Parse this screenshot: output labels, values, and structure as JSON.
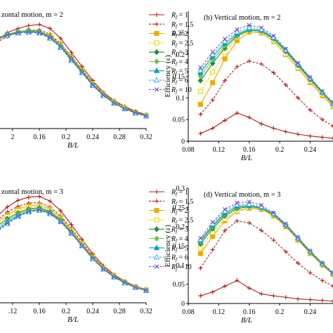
{
  "colors": {
    "1": "#b01c1c",
    "1.5": "#b01c1c",
    "2": "#f0a800",
    "2.5": "#e8d000",
    "3": "#1f8a3c",
    "4": "#7ac043",
    "5": "#00a0c0",
    "6": "#30b0e8",
    "10": "#7050c0"
  },
  "legend_entries": [
    {
      "key": "1",
      "label": "1"
    },
    {
      "key": "1.5",
      "label": "1.5"
    },
    {
      "key": "2",
      "label": "2"
    },
    {
      "key": "2.5",
      "label": "2.5"
    },
    {
      "key": "3",
      "label": "3"
    },
    {
      "key": "4",
      "label": "4"
    },
    {
      "key": "5",
      "label": "5"
    },
    {
      "key": "6",
      "label": "6"
    },
    {
      "key": "10",
      "label": "10"
    }
  ],
  "legend_prefix": "R",
  "legend_subscript": "f",
  "chart_data": [
    {
      "id": "a",
      "type": "line",
      "title": "zontal motion, m = 2",
      "xlabel": "B/L",
      "ylabel": "",
      "xlim": [
        0.08,
        0.32
      ],
      "ylim": [
        0,
        0.3
      ],
      "xticks": [
        "2",
        "0.16",
        "0.2",
        "0.24",
        "0.28",
        "0.32"
      ],
      "x": [
        0.096,
        0.112,
        0.128,
        0.144,
        0.16,
        0.176,
        0.192,
        0.208,
        0.224,
        0.24,
        0.256,
        0.272,
        0.288,
        0.304,
        0.32
      ],
      "series": [
        {
          "key": "1",
          "values": [
            0.22,
            0.24,
            0.25,
            0.257,
            0.26,
            0.25,
            0.225,
            0.19,
            0.155,
            0.12,
            0.09,
            0.07,
            0.055,
            0.043,
            0.035
          ]
        },
        {
          "key": "1.5",
          "values": [
            0.215,
            0.23,
            0.24,
            0.245,
            0.246,
            0.236,
            0.212,
            0.18,
            0.148,
            0.115,
            0.088,
            0.068,
            0.053,
            0.042,
            0.034
          ]
        },
        {
          "key": "2",
          "values": [
            0.22,
            0.232,
            0.24,
            0.244,
            0.243,
            0.232,
            0.21,
            0.178,
            0.146,
            0.113,
            0.087,
            0.067,
            0.052,
            0.041,
            0.033
          ]
        },
        {
          "key": "2.5",
          "values": [
            0.222,
            0.233,
            0.24,
            0.243,
            0.242,
            0.23,
            0.208,
            0.176,
            0.144,
            0.112,
            0.086,
            0.066,
            0.051,
            0.04,
            0.033
          ]
        },
        {
          "key": "3",
          "values": [
            0.225,
            0.235,
            0.242,
            0.245,
            0.243,
            0.23,
            0.207,
            0.175,
            0.143,
            0.11,
            0.085,
            0.065,
            0.05,
            0.04,
            0.032
          ]
        },
        {
          "key": "4",
          "values": [
            0.226,
            0.236,
            0.242,
            0.244,
            0.242,
            0.229,
            0.206,
            0.173,
            0.141,
            0.109,
            0.084,
            0.064,
            0.05,
            0.039,
            0.032
          ]
        },
        {
          "key": "5",
          "values": [
            0.224,
            0.234,
            0.24,
            0.242,
            0.24,
            0.227,
            0.204,
            0.172,
            0.14,
            0.108,
            0.083,
            0.064,
            0.049,
            0.039,
            0.031
          ]
        },
        {
          "key": "6",
          "values": [
            0.222,
            0.232,
            0.238,
            0.24,
            0.238,
            0.225,
            0.202,
            0.17,
            0.139,
            0.107,
            0.082,
            0.063,
            0.049,
            0.038,
            0.031
          ]
        },
        {
          "key": "10",
          "values": [
            0.223,
            0.233,
            0.239,
            0.241,
            0.239,
            0.226,
            0.203,
            0.171,
            0.14,
            0.108,
            0.083,
            0.063,
            0.049,
            0.039,
            0.031
          ]
        }
      ]
    },
    {
      "id": "b",
      "type": "line",
      "title": "(b) Vertical motion, m = 2",
      "xlabel": "B/L",
      "ylabel": "Efficiency (ε)",
      "xlim": [
        0.08,
        0.27
      ],
      "ylim": [
        0,
        0.3
      ],
      "xticks": [
        "0.08",
        "0.12",
        "0.16",
        "0.2",
        "0.24"
      ],
      "yticks": [
        "0",
        "0.05",
        "0.1",
        "0.15",
        "0.2",
        "0.25"
      ],
      "x": [
        0.096,
        0.112,
        0.128,
        0.144,
        0.16,
        0.176,
        0.192,
        0.208,
        0.224,
        0.24,
        0.256,
        0.27
      ],
      "series": [
        {
          "key": "1",
          "values": [
            0.018,
            0.03,
            0.048,
            0.065,
            0.055,
            0.04,
            0.03,
            0.022,
            0.016,
            0.012,
            0.009,
            0.007
          ]
        },
        {
          "key": "1.5",
          "values": [
            0.062,
            0.095,
            0.14,
            0.172,
            0.185,
            0.178,
            0.158,
            0.13,
            0.1,
            0.072,
            0.05,
            0.035
          ]
        },
        {
          "key": "2",
          "values": [
            0.085,
            0.135,
            0.19,
            0.232,
            0.252,
            0.25,
            0.23,
            0.2,
            0.168,
            0.135,
            0.105,
            0.08
          ]
        },
        {
          "key": "2.5",
          "values": [
            0.115,
            0.16,
            0.205,
            0.24,
            0.255,
            0.252,
            0.232,
            0.202,
            0.17,
            0.138,
            0.108,
            0.082
          ]
        },
        {
          "key": "3",
          "values": [
            0.14,
            0.18,
            0.215,
            0.243,
            0.256,
            0.254,
            0.236,
            0.207,
            0.175,
            0.142,
            0.111,
            0.085
          ]
        },
        {
          "key": "4",
          "values": [
            0.15,
            0.188,
            0.22,
            0.245,
            0.257,
            0.255,
            0.238,
            0.209,
            0.177,
            0.144,
            0.112,
            0.086
          ]
        },
        {
          "key": "5",
          "values": [
            0.158,
            0.195,
            0.225,
            0.248,
            0.258,
            0.256,
            0.239,
            0.21,
            0.178,
            0.145,
            0.113,
            0.087
          ]
        },
        {
          "key": "6",
          "values": [
            0.163,
            0.2,
            0.23,
            0.252,
            0.262,
            0.258,
            0.24,
            0.211,
            0.179,
            0.146,
            0.114,
            0.088
          ]
        },
        {
          "key": "10",
          "values": [
            0.17,
            0.206,
            0.236,
            0.258,
            0.268,
            0.262,
            0.243,
            0.213,
            0.18,
            0.147,
            0.115,
            0.089
          ]
        }
      ]
    },
    {
      "id": "c",
      "type": "line",
      "title": "zontal motion, m = 3",
      "xlabel": "B/L",
      "ylabel": "",
      "xlim": [
        0.08,
        0.32
      ],
      "ylim": [
        0,
        0.3
      ],
      "xticks": [
        ".12",
        "0.16",
        "0.2",
        "0.24",
        "0.28",
        "0.32"
      ],
      "x": [
        0.096,
        0.112,
        0.128,
        0.144,
        0.16,
        0.176,
        0.192,
        0.208,
        0.224,
        0.24,
        0.256,
        0.272,
        0.288,
        0.304,
        0.32
      ],
      "series": [
        {
          "key": "1",
          "values": [
            0.22,
            0.245,
            0.262,
            0.27,
            0.272,
            0.26,
            0.235,
            0.2,
            0.162,
            0.125,
            0.095,
            0.072,
            0.055,
            0.042,
            0.034
          ]
        },
        {
          "key": "1.5",
          "values": [
            0.21,
            0.232,
            0.247,
            0.255,
            0.256,
            0.245,
            0.222,
            0.19,
            0.155,
            0.12,
            0.092,
            0.07,
            0.054,
            0.041,
            0.033
          ]
        },
        {
          "key": "2",
          "values": [
            0.205,
            0.225,
            0.24,
            0.248,
            0.25,
            0.24,
            0.218,
            0.186,
            0.152,
            0.118,
            0.09,
            0.069,
            0.053,
            0.041,
            0.033
          ]
        },
        {
          "key": "2.5",
          "values": [
            0.2,
            0.22,
            0.235,
            0.244,
            0.246,
            0.236,
            0.214,
            0.183,
            0.15,
            0.116,
            0.089,
            0.068,
            0.052,
            0.04,
            0.032
          ]
        },
        {
          "key": "3",
          "values": [
            0.195,
            0.215,
            0.23,
            0.24,
            0.243,
            0.233,
            0.212,
            0.181,
            0.148,
            0.115,
            0.088,
            0.067,
            0.052,
            0.04,
            0.032
          ]
        },
        {
          "key": "4",
          "values": [
            0.19,
            0.21,
            0.227,
            0.237,
            0.24,
            0.231,
            0.21,
            0.179,
            0.147,
            0.114,
            0.087,
            0.066,
            0.051,
            0.04,
            0.032
          ]
        },
        {
          "key": "5",
          "values": [
            0.185,
            0.206,
            0.223,
            0.234,
            0.238,
            0.229,
            0.208,
            0.178,
            0.146,
            0.113,
            0.086,
            0.066,
            0.051,
            0.039,
            0.031
          ]
        },
        {
          "key": "6",
          "values": [
            0.18,
            0.202,
            0.22,
            0.232,
            0.236,
            0.227,
            0.207,
            0.177,
            0.145,
            0.112,
            0.086,
            0.065,
            0.05,
            0.039,
            0.031
          ]
        },
        {
          "key": "10",
          "values": [
            0.182,
            0.203,
            0.221,
            0.233,
            0.237,
            0.228,
            0.207,
            0.177,
            0.145,
            0.113,
            0.086,
            0.066,
            0.051,
            0.039,
            0.031
          ]
        }
      ]
    },
    {
      "id": "d",
      "type": "line",
      "title": "(d) Vertical motion, m = 3",
      "xlabel": "B/L",
      "ylabel": "Efficiency (ε)",
      "xlim": [
        0.08,
        0.27
      ],
      "ylim": [
        0,
        0.3
      ],
      "xticks": [
        "0.08",
        "0.12",
        "0.16",
        "0.2",
        "0.24"
      ],
      "yticks": [
        "0",
        "0.05",
        "0.1",
        "0.15",
        "0.2",
        "0.25",
        "0.3"
      ],
      "x": [
        0.096,
        0.112,
        0.128,
        0.144,
        0.16,
        0.176,
        0.192,
        0.208,
        0.224,
        0.24,
        0.256,
        0.27
      ],
      "series": [
        {
          "key": "1",
          "values": [
            0.02,
            0.03,
            0.045,
            0.06,
            0.04,
            0.025,
            0.02,
            0.016,
            0.012,
            0.01,
            0.008,
            0.006
          ]
        },
        {
          "key": "1.5",
          "values": [
            0.092,
            0.14,
            0.19,
            0.215,
            0.21,
            0.19,
            0.165,
            0.135,
            0.105,
            0.08,
            0.06,
            0.045
          ]
        },
        {
          "key": "2",
          "values": [
            0.13,
            0.175,
            0.215,
            0.24,
            0.248,
            0.245,
            0.228,
            0.2,
            0.165,
            0.13,
            0.1,
            0.075
          ]
        },
        {
          "key": "2.5",
          "values": [
            0.145,
            0.185,
            0.22,
            0.242,
            0.25,
            0.247,
            0.23,
            0.202,
            0.167,
            0.132,
            0.101,
            0.076
          ]
        },
        {
          "key": "3",
          "values": [
            0.155,
            0.195,
            0.228,
            0.247,
            0.252,
            0.248,
            0.231,
            0.203,
            0.168,
            0.133,
            0.102,
            0.077
          ]
        },
        {
          "key": "4",
          "values": [
            0.16,
            0.2,
            0.232,
            0.25,
            0.253,
            0.249,
            0.232,
            0.204,
            0.169,
            0.134,
            0.103,
            0.078
          ]
        },
        {
          "key": "5",
          "values": [
            0.163,
            0.203,
            0.235,
            0.253,
            0.255,
            0.25,
            0.233,
            0.205,
            0.17,
            0.135,
            0.104,
            0.079
          ]
        },
        {
          "key": "6",
          "values": [
            0.166,
            0.207,
            0.24,
            0.257,
            0.258,
            0.252,
            0.234,
            0.206,
            0.171,
            0.136,
            0.104,
            0.079
          ]
        },
        {
          "key": "10",
          "values": [
            0.17,
            0.212,
            0.245,
            0.262,
            0.265,
            0.256,
            0.236,
            0.207,
            0.172,
            0.137,
            0.105,
            0.08
          ]
        }
      ]
    }
  ]
}
